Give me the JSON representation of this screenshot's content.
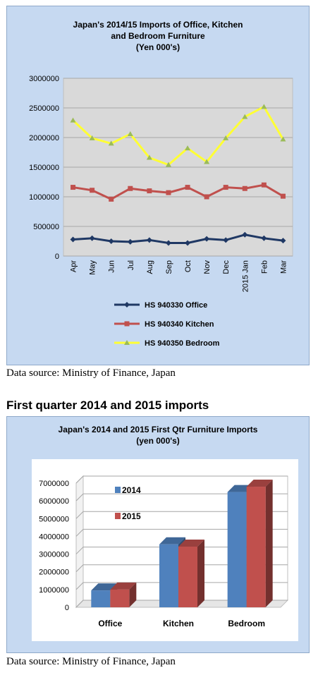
{
  "chart_data": [
    {
      "type": "line",
      "title_lines": [
        "Japan's 2014/15  Imports of Office, Kitchen",
        "and Bedroom Furniture",
        "(Yen 000's)"
      ],
      "categories": [
        "Apr",
        "May",
        "Jun",
        "Jul",
        "Aug",
        "Sep",
        "Oct",
        "Nov",
        "Dec",
        "2015 Jan",
        "Feb",
        "Mar"
      ],
      "y_ticks": [
        "0",
        "500000",
        "1000000",
        "1500000",
        "2000000",
        "2500000",
        "3000000"
      ],
      "ylim": [
        0,
        3000000
      ],
      "grid": true,
      "legend": "bottom",
      "series": [
        {
          "name": "HS 940330 Office",
          "color": "#1f3864",
          "marker": "diamond",
          "values": [
            280000,
            300000,
            250000,
            240000,
            270000,
            220000,
            220000,
            290000,
            270000,
            360000,
            300000,
            260000
          ]
        },
        {
          "name": "HS 940340 Kitchen",
          "color": "#c0504d",
          "marker": "square",
          "values": [
            1160000,
            1110000,
            960000,
            1140000,
            1100000,
            1070000,
            1160000,
            1000000,
            1160000,
            1140000,
            1200000,
            1010000
          ]
        },
        {
          "name": "HS 940350 Bedroom",
          "color": "#ffff33",
          "marker": "triangle",
          "values": [
            2290000,
            1990000,
            1900000,
            2060000,
            1660000,
            1540000,
            1820000,
            1590000,
            1990000,
            2350000,
            2520000,
            1970000
          ]
        }
      ]
    },
    {
      "type": "bar",
      "title_lines": [
        "Japan's  2014 and 2015 First Qtr Furniture Imports",
        "(yen 000's)"
      ],
      "categories": [
        "Office",
        "Kitchen",
        "Bedroom"
      ],
      "y_ticks": [
        "0",
        "1000000",
        "2000000",
        "3000000",
        "4000000",
        "5000000",
        "6000000",
        "7000000"
      ],
      "ylim": [
        0,
        7000000
      ],
      "legend": "top-left",
      "series": [
        {
          "name": "2014",
          "color": "#4f81bd",
          "values": [
            950000,
            3550000,
            6500000
          ]
        },
        {
          "name": "2015",
          "color": "#c0504d",
          "values": [
            1000000,
            3420000,
            6800000
          ]
        }
      ]
    }
  ],
  "page": {
    "source_1": "Data source: Ministry of Finance, Japan",
    "section_heading": "First quarter 2014 and 2015 imports",
    "source_2": "Data source: Ministry of Finance, Japan"
  }
}
